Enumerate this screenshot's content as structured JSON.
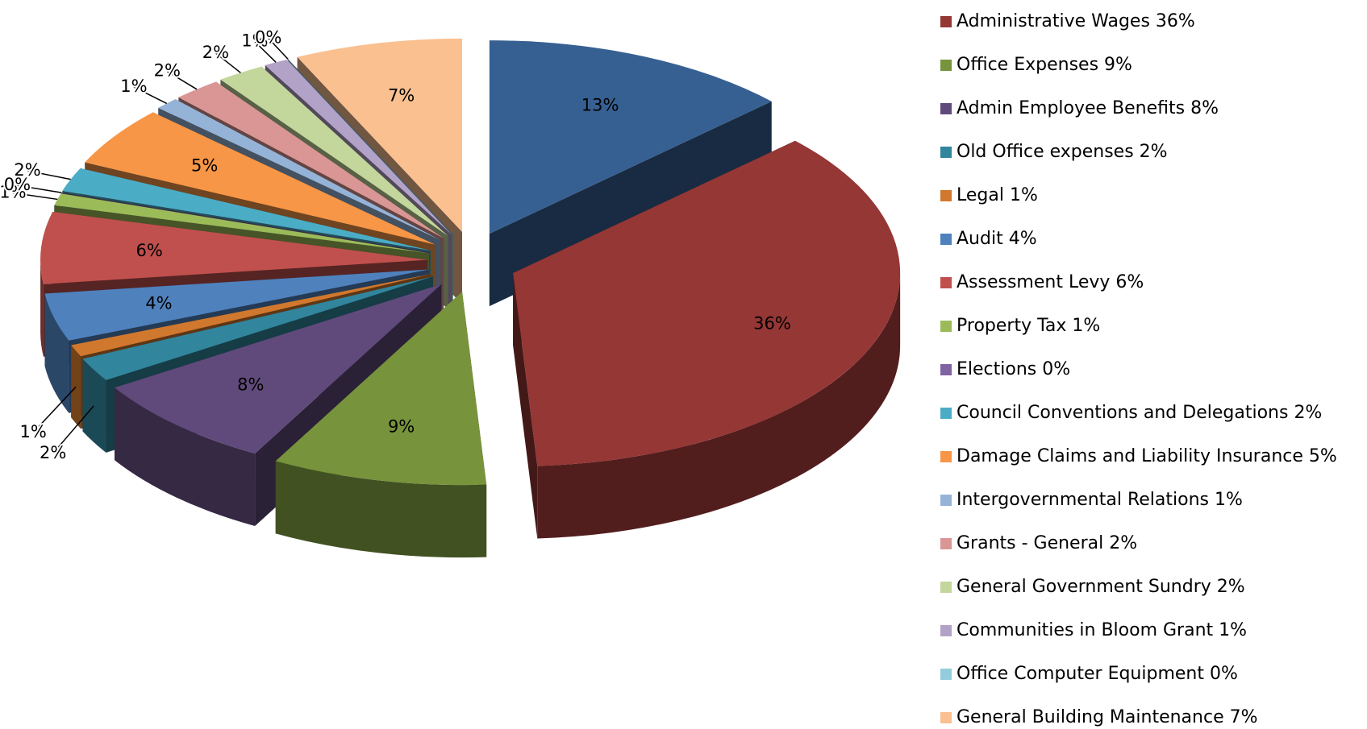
{
  "chart_data": {
    "type": "pie3d",
    "categories": [
      "Administrative Wages",
      "Office Expenses",
      "Admin Employee Benefits",
      "Old Office expenses",
      "Legal",
      "Audit",
      "Assessment Levy",
      "Property Tax",
      "Elections",
      "Council Conventions and Delegations",
      "Damage Claims and Liability Insurance",
      "Intergovernmental Relations",
      "Grants - General",
      "General Government Sundry",
      "Communities in Bloom Grant",
      "Office Computer Equipment",
      "General Building Maintenance",
      null
    ],
    "values": [
      36,
      9,
      8,
      2,
      1,
      4,
      6,
      1,
      0,
      2,
      5,
      1,
      2,
      2,
      1,
      0,
      7,
      13
    ],
    "value_labels": [
      "36%",
      "9%",
      "8%",
      "2%",
      "1%",
      "4%",
      "6%",
      "1%",
      "0%",
      "2%",
      "5%",
      "1%",
      "2%",
      "2%",
      "1%",
      "0%",
      "7%",
      "13%"
    ],
    "colors": [
      "#953735",
      "#77933c",
      "#604a7b",
      "#31859c",
      "#d0782e",
      "#4f81bd",
      "#c0504d",
      "#9bbb59",
      "#8064a2",
      "#4bacc6",
      "#f79646",
      "#95b3d7",
      "#d99694",
      "#c3d69b",
      "#b3a2c7",
      "#93cddd",
      "#fac090",
      "#376092"
    ],
    "legend": "right"
  }
}
